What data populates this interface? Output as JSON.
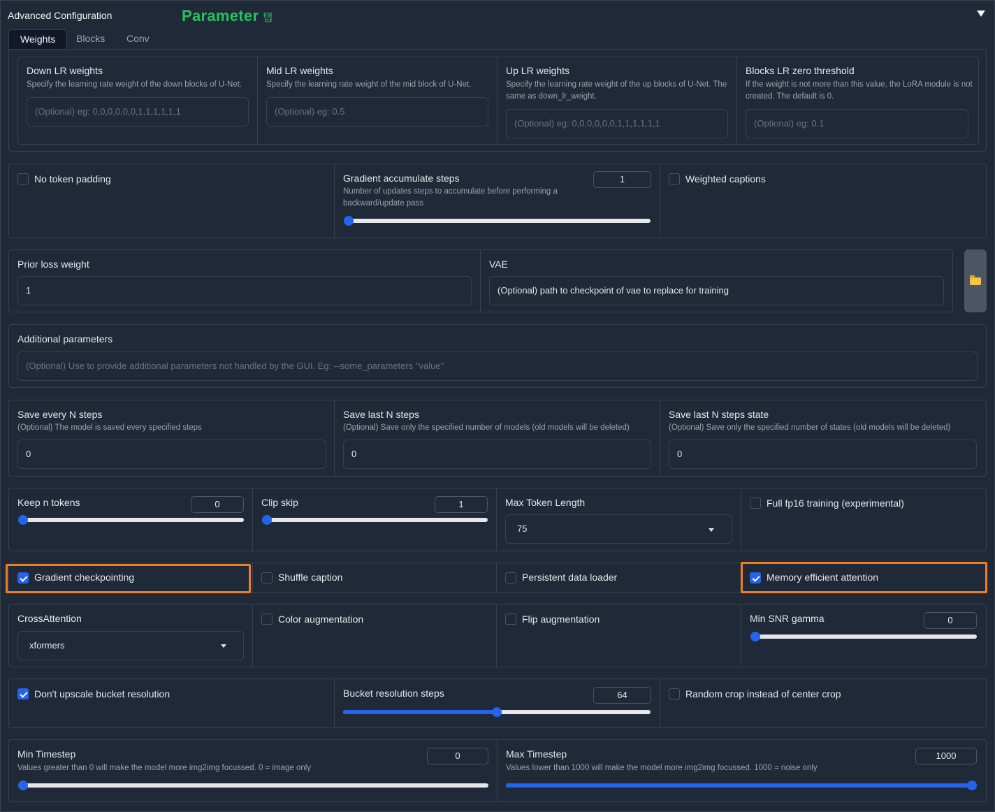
{
  "header": {
    "title": "Advanced Configuration",
    "annotation": "Parameter",
    "annotation_suffix": "탭"
  },
  "tabs": [
    {
      "label": "Weights",
      "active": true
    },
    {
      "label": "Blocks",
      "active": false
    },
    {
      "label": "Conv",
      "active": false
    }
  ],
  "lr_weights": {
    "down": {
      "label": "Down LR weights",
      "desc": "Specify the learning rate weight of the down blocks of U-Net.",
      "placeholder": "(Optional) eg: 0,0,0,0,0,0,1,1,1,1,1,1"
    },
    "mid": {
      "label": "Mid LR weights",
      "desc": "Specify the learning rate weight of the mid block of U-Net.",
      "placeholder": "(Optional) eg: 0.5"
    },
    "up": {
      "label": "Up LR weights",
      "desc": "Specify the learning rate weight of the up blocks of U-Net. The same as down_lr_weight.",
      "placeholder": "(Optional) eg: 0,0,0,0,0,0,1,1,1,1,1,1"
    },
    "zero": {
      "label": "Blocks LR zero threshold",
      "desc": "If the weight is not more than this value, the LoRA module is not created. The default is 0.",
      "placeholder": "(Optional) eg: 0.1"
    }
  },
  "row2": {
    "no_token_padding": {
      "label": "No token padding",
      "checked": false
    },
    "grad_accum": {
      "label": "Gradient accumulate steps",
      "desc": "Number of updates steps to accumulate before performing a backward/update pass",
      "value": "1",
      "slider_fraction": 0.0
    },
    "weighted_captions": {
      "label": "Weighted captions",
      "checked": false
    }
  },
  "row3": {
    "prior_loss": {
      "label": "Prior loss weight",
      "value": "1"
    },
    "vae": {
      "label": "VAE",
      "value": "(Optional) path to checkpoint of vae to replace for training"
    },
    "folder_icon": "folder-icon"
  },
  "additional": {
    "label": "Additional parameters",
    "placeholder": "(Optional) Use to provide additional parameters not handled by the GUI. Eg: --some_parameters \"value\""
  },
  "save": {
    "every": {
      "label": "Save every N steps",
      "desc": "(Optional) The model is saved every specified steps",
      "value": "0"
    },
    "last": {
      "label": "Save last N steps",
      "desc": "(Optional) Save only the specified number of models (old models will be deleted)",
      "value": "0"
    },
    "state": {
      "label": "Save last N steps state",
      "desc": "(Optional) Save only the specified number of states (old models will be deleted)",
      "value": "0"
    }
  },
  "tokens": {
    "keep": {
      "label": "Keep n tokens",
      "value": "0",
      "slider_fraction": 0.0
    },
    "clip": {
      "label": "Clip skip",
      "value": "1",
      "slider_fraction": 0.0
    },
    "max_len": {
      "label": "Max Token Length",
      "value": "75"
    },
    "fp16": {
      "label": "Full fp16 training (experimental)",
      "checked": false
    }
  },
  "flags": {
    "grad_ckpt": {
      "label": "Gradient checkpointing",
      "checked": true
    },
    "shuffle": {
      "label": "Shuffle caption",
      "checked": false
    },
    "persistent": {
      "label": "Persistent data loader",
      "checked": false
    },
    "mem_eff": {
      "label": "Memory efficient attention",
      "checked": true
    }
  },
  "cross": {
    "attention": {
      "label": "CrossAttention",
      "value": "xformers"
    },
    "color_aug": {
      "label": "Color augmentation",
      "checked": false
    },
    "flip_aug": {
      "label": "Flip augmentation",
      "checked": false
    },
    "min_snr": {
      "label": "Min SNR gamma",
      "value": "0",
      "slider_fraction": 0.0
    }
  },
  "bucket": {
    "no_upscale": {
      "label": "Don't upscale bucket resolution",
      "checked": true
    },
    "steps": {
      "label": "Bucket resolution steps",
      "value": "64",
      "slider_fraction": 0.5
    },
    "random_crop": {
      "label": "Random crop instead of center crop",
      "checked": false
    }
  },
  "timestep": {
    "min": {
      "label": "Min Timestep",
      "desc": "Values greater than 0 will make the model more img2img focussed. 0 = image only",
      "value": "0",
      "slider_fraction": 0.0
    },
    "max": {
      "label": "Max Timestep",
      "desc": "Values lower than 1000 will make the model more img2img focussed. 1000 = noise only",
      "value": "1000",
      "slider_fraction": 1.0
    }
  },
  "colors": {
    "accent": "#2563eb",
    "annotation": "#22c55e",
    "highlight": "#f07f23",
    "background": "#1f2937"
  }
}
